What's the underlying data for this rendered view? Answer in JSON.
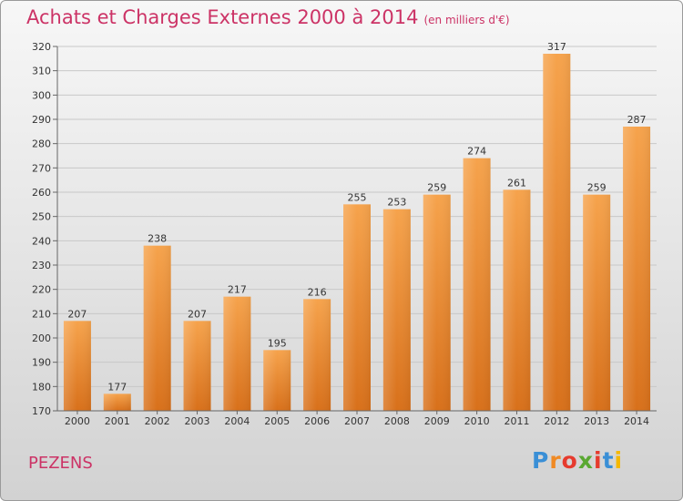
{
  "header": {
    "title": "Achats et Charges Externes 2000 à 2014",
    "unit": "(en milliers d'€)"
  },
  "footer": {
    "town": "PEZENS",
    "brand": [
      "P",
      "r",
      "o",
      "x",
      "i",
      "t",
      "i"
    ]
  },
  "colors": {
    "title": "#cc3366",
    "bar_top": "#f6a34c",
    "bar_bottom": "#d8701a"
  },
  "chart_data": {
    "type": "bar",
    "title": "Achats et Charges Externes 2000 à 2014",
    "xlabel": "",
    "ylabel": "(en milliers d'€)",
    "categories": [
      "2000",
      "2001",
      "2002",
      "2003",
      "2004",
      "2005",
      "2006",
      "2007",
      "2008",
      "2009",
      "2010",
      "2011",
      "2012",
      "2013",
      "2014"
    ],
    "values": [
      207,
      177,
      238,
      207,
      217,
      195,
      216,
      255,
      253,
      259,
      274,
      261,
      317,
      259,
      287
    ],
    "ylim": [
      170,
      320
    ],
    "yticks": [
      170,
      180,
      190,
      200,
      210,
      220,
      230,
      240,
      250,
      260,
      270,
      280,
      290,
      300,
      310,
      320
    ],
    "grid": true
  }
}
